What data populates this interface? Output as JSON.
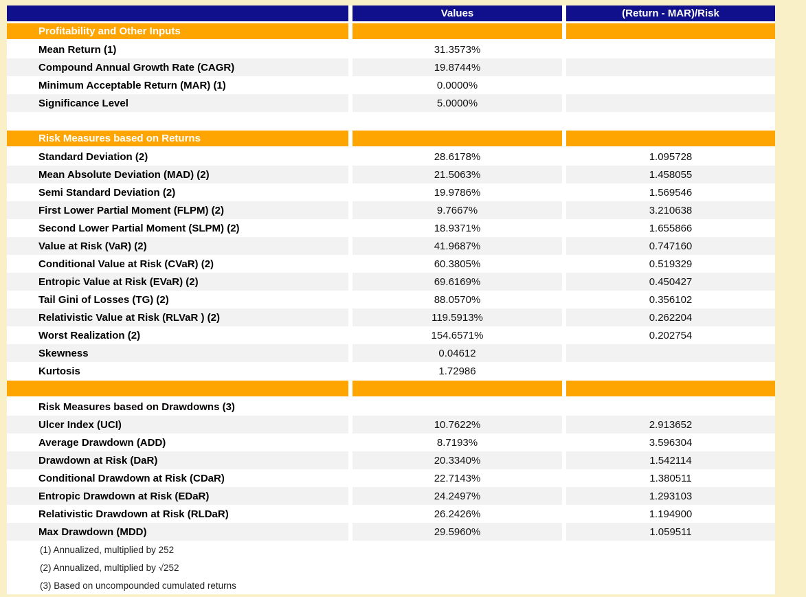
{
  "colors": {
    "canvas_background": "#FAF0C8",
    "header_background": "#10108C",
    "header_text": "#FFFFFF",
    "section_band_background": "#FFA502",
    "section_band_text": "#FFFFFF",
    "shaded_row_background": "#F2F2F2",
    "label_text": "#000000",
    "value_text": "#111111"
  },
  "chart_data": {
    "type": "table",
    "title": "",
    "columns": [
      "",
      "Values",
      "(Return - MAR)/Risk"
    ],
    "rows": [
      {
        "type": "section",
        "label": "Profitability and Other Inputs",
        "value": "",
        "ratio": "",
        "shade": false
      },
      {
        "type": "data",
        "label": "Mean Return (1)",
        "value": "31.3573%",
        "ratio": "",
        "shade": false
      },
      {
        "type": "data",
        "label": "Compound Annual Growth Rate (CAGR)",
        "value": "19.8744%",
        "ratio": "",
        "shade": true
      },
      {
        "type": "data",
        "label": "Minimum Acceptable Return (MAR) (1)",
        "value": "0.0000%",
        "ratio": "",
        "shade": false
      },
      {
        "type": "data",
        "label": "Significance Level",
        "value": "5.0000%",
        "ratio": "",
        "shade": true
      },
      {
        "type": "spacer",
        "label": "",
        "value": "",
        "ratio": "",
        "shade": false
      },
      {
        "type": "section",
        "label": "Risk Measures based on Returns",
        "value": "",
        "ratio": "",
        "shade": false
      },
      {
        "type": "data",
        "label": "Standard Deviation (2)",
        "value": "28.6178%",
        "ratio": "1.095728",
        "shade": false
      },
      {
        "type": "data",
        "label": "Mean Absolute Deviation (MAD) (2)",
        "value": "21.5063%",
        "ratio": "1.458055",
        "shade": true
      },
      {
        "type": "data",
        "label": "Semi Standard Deviation (2)",
        "value": "19.9786%",
        "ratio": "1.569546",
        "shade": false
      },
      {
        "type": "data",
        "label": "First Lower Partial Moment (FLPM) (2)",
        "value": "9.7667%",
        "ratio": "3.210638",
        "shade": true
      },
      {
        "type": "data",
        "label": "Second Lower Partial Moment (SLPM) (2)",
        "value": "18.9371%",
        "ratio": "1.655866",
        "shade": false
      },
      {
        "type": "data",
        "label": "Value at Risk (VaR) (2)",
        "value": "41.9687%",
        "ratio": "0.747160",
        "shade": true
      },
      {
        "type": "data",
        "label": "Conditional Value at Risk (CVaR) (2)",
        "value": "60.3805%",
        "ratio": "0.519329",
        "shade": false
      },
      {
        "type": "data",
        "label": "Entropic Value at Risk (EVaR) (2)",
        "value": "69.6169%",
        "ratio": "0.450427",
        "shade": true
      },
      {
        "type": "data",
        "label": "Tail Gini of Losses (TG) (2)",
        "value": "88.0570%",
        "ratio": "0.356102",
        "shade": false
      },
      {
        "type": "data",
        "label": "Relativistic Value at Risk (RLVaR ) (2)",
        "value": "119.5913%",
        "ratio": "0.262204",
        "shade": true
      },
      {
        "type": "data",
        "label": "Worst Realization (2)",
        "value": "154.6571%",
        "ratio": "0.202754",
        "shade": false
      },
      {
        "type": "data",
        "label": "Skewness",
        "value": "0.04612",
        "ratio": "",
        "shade": true
      },
      {
        "type": "data",
        "label": "Kurtosis",
        "value": "1.72986",
        "ratio": "",
        "shade": false
      },
      {
        "type": "section",
        "label": "",
        "value": "",
        "ratio": "",
        "shade": false
      },
      {
        "type": "subheader",
        "label": "Risk Measures based on Drawdowns (3)",
        "value": "",
        "ratio": "",
        "shade": false
      },
      {
        "type": "data",
        "label": "Ulcer Index (UCI)",
        "value": "10.7622%",
        "ratio": "2.913652",
        "shade": true
      },
      {
        "type": "data",
        "label": "Average Drawdown (ADD)",
        "value": "8.7193%",
        "ratio": "3.596304",
        "shade": false
      },
      {
        "type": "data",
        "label": "Drawdown at Risk (DaR)",
        "value": "20.3340%",
        "ratio": "1.542114",
        "shade": true
      },
      {
        "type": "data",
        "label": "Conditional Drawdown at Risk (CDaR)",
        "value": "22.7143%",
        "ratio": "1.380511",
        "shade": false
      },
      {
        "type": "data",
        "label": "Entropic Drawdown at Risk (EDaR)",
        "value": "24.2497%",
        "ratio": "1.293103",
        "shade": true
      },
      {
        "type": "data",
        "label": "Relativistic Drawdown at Risk (RLDaR)",
        "value": "26.2426%",
        "ratio": "1.194900",
        "shade": false
      },
      {
        "type": "data",
        "label": "Max Drawdown (MDD)",
        "value": "29.5960%",
        "ratio": "1.059511",
        "shade": true
      },
      {
        "type": "footnote",
        "label": "(1) Annualized, multiplied by 252",
        "value": "",
        "ratio": "",
        "shade": false
      },
      {
        "type": "footnote",
        "label": "(2) Annualized, multiplied by √252",
        "value": "",
        "ratio": "",
        "shade": false
      },
      {
        "type": "footnote",
        "label": "(3) Based on uncompounded cumulated returns",
        "value": "",
        "ratio": "",
        "shade": false
      }
    ]
  }
}
